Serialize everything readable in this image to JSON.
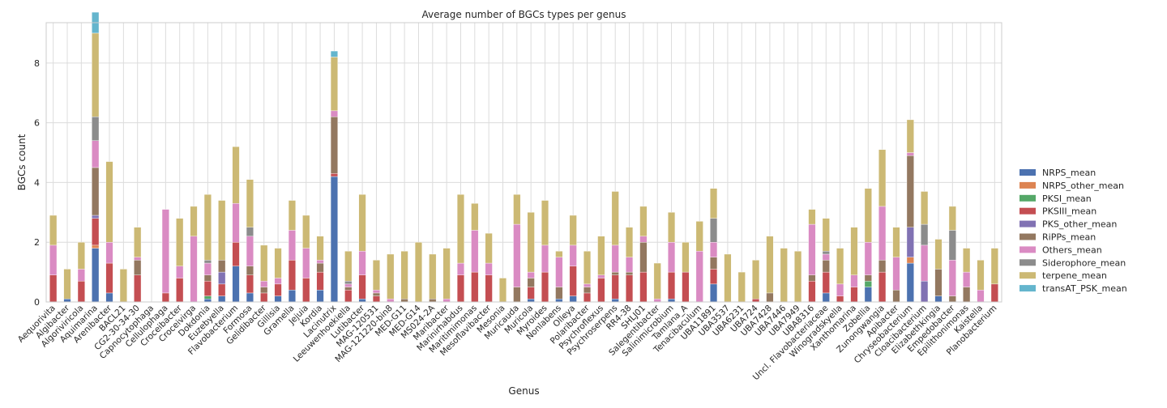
{
  "chart_data": {
    "type": "bar",
    "stacked": true,
    "title": "Average number of BGCs types per genus",
    "xlabel": "Genus",
    "ylabel": "BGCs count",
    "ylim": [
      0,
      9.35
    ],
    "yticks": [
      0,
      2,
      4,
      6,
      8
    ],
    "grid": true,
    "legend_position": "right",
    "categories": [
      "Aequorivita",
      "Algibacter",
      "Algoriviricola",
      "Aquimarina",
      "Arenibacter",
      "BACL21",
      "CG2-30-34-30",
      "Capnocytophaga",
      "Cellulophaga",
      "Croceibacter",
      "Croceivirga",
      "Dokdonia",
      "Euzebyella",
      "Flavobacterium",
      "Formosa",
      "Gelidibacter",
      "Gillisia",
      "Gramella",
      "Jejuia",
      "Kordia",
      "Lacinutrix",
      "Leeuwenhoekiella",
      "Lutibacter",
      "MAG-120531",
      "MAG-121220-bin8",
      "MED-G11",
      "MED-G14",
      "MS024-2A",
      "Maribacter",
      "Marinirhabdus",
      "Maritimimonas",
      "Mesoflavibacter",
      "Mesonia",
      "Muricauda",
      "Muricola",
      "Myroides",
      "Nonlabens",
      "Olleya",
      "Polaribacter",
      "Psychroflexus",
      "Psychroserpens",
      "RR4-38",
      "SHLJ01",
      "Salegentibacter",
      "Salinimicrobium",
      "Tamlana_A",
      "Tenacibaculum",
      "UBA11891",
      "UBA3537",
      "UBA6231",
      "UBA724",
      "UBA7428",
      "UBA7446",
      "UBA7949",
      "UBA8316",
      "Uncl. Flavobacteriaceae",
      "Winogradskyella",
      "Xanthomarina",
      "Zobellia",
      "Zunongwangia",
      "Apibacter",
      "Chryseobacterium",
      "Cloacibacterium",
      "Elizabethkingia",
      "Empedobacter",
      "Epilithonimonas",
      "Kaistella",
      "Planobacterium"
    ],
    "series": [
      {
        "name": "NRPS_mean",
        "color": "#4c72b0",
        "values": [
          0,
          0.1,
          0,
          1.8,
          0.3,
          0,
          0,
          0,
          0,
          0,
          0,
          0.1,
          0.2,
          1.2,
          0.3,
          0,
          0.2,
          0.4,
          0,
          0.4,
          4.2,
          0,
          0.1,
          0,
          0,
          0,
          0,
          0,
          0,
          0,
          0,
          0,
          0,
          0,
          0.1,
          0,
          0.1,
          0.2,
          0,
          0,
          0.1,
          0,
          0,
          0,
          0.1,
          0,
          0,
          0.6,
          0,
          0,
          0,
          0,
          0,
          0,
          0,
          0.3,
          0,
          0,
          0.5,
          0,
          0,
          1.3,
          0,
          0.2,
          0,
          0,
          0,
          0
        ]
      },
      {
        "name": "NRPS_other_mean",
        "color": "#dd8452",
        "values": [
          0,
          0,
          0,
          0.1,
          0,
          0,
          0,
          0,
          0,
          0,
          0,
          0,
          0,
          0,
          0,
          0,
          0,
          0,
          0,
          0,
          0,
          0,
          0,
          0,
          0,
          0,
          0,
          0,
          0,
          0,
          0,
          0,
          0,
          0,
          0,
          0,
          0,
          0,
          0,
          0,
          0,
          0,
          0,
          0,
          0,
          0,
          0,
          0,
          0,
          0,
          0,
          0,
          0,
          0,
          0,
          0,
          0,
          0,
          0,
          0,
          0,
          0.2,
          0,
          0,
          0,
          0,
          0,
          0
        ]
      },
      {
        "name": "PKSI_mean",
        "color": "#55a868",
        "values": [
          0,
          0,
          0,
          0,
          0,
          0,
          0,
          0,
          0,
          0,
          0,
          0.1,
          0,
          0,
          0,
          0,
          0,
          0,
          0,
          0,
          0,
          0,
          0,
          0,
          0,
          0,
          0,
          0,
          0,
          0,
          0,
          0,
          0,
          0,
          0,
          0,
          0,
          0,
          0,
          0,
          0,
          0,
          0,
          0,
          0,
          0,
          0,
          0,
          0,
          0,
          0,
          0,
          0,
          0,
          0,
          0,
          0,
          0,
          0.2,
          0,
          0,
          0,
          0,
          0,
          0,
          0,
          0,
          0
        ]
      },
      {
        "name": "PKSIII_mean",
        "color": "#c44e52",
        "values": [
          0.9,
          0,
          0.7,
          0.9,
          1.0,
          0,
          0.9,
          0,
          0.3,
          0.8,
          0,
          0.5,
          0.4,
          0.8,
          0.6,
          0.3,
          0.4,
          1.0,
          0.8,
          0.6,
          0.1,
          0.4,
          0.8,
          0.2,
          0,
          0,
          0,
          0,
          0,
          0.9,
          1.0,
          0.9,
          0,
          0,
          0.4,
          1.0,
          0,
          1.0,
          0.3,
          0.8,
          0.8,
          0.9,
          1.0,
          0,
          0.9,
          1.0,
          0,
          0.5,
          0,
          0,
          0.1,
          0,
          0,
          0,
          0.7,
          0.7,
          0.2,
          0.5,
          0,
          1.0,
          0,
          0,
          0,
          0,
          0,
          0,
          0,
          0.6
        ]
      },
      {
        "name": "PKS_other_mean",
        "color": "#8172b3",
        "values": [
          0,
          0,
          0,
          0.1,
          0,
          0,
          0,
          0,
          0,
          0,
          0,
          0,
          0.4,
          0,
          0,
          0,
          0,
          0,
          0,
          0,
          0,
          0,
          0,
          0,
          0,
          0,
          0,
          0,
          0,
          0,
          0,
          0,
          0,
          0,
          0,
          0,
          0,
          0,
          0,
          0,
          0,
          0,
          0,
          0,
          0,
          0,
          0,
          0,
          0,
          0,
          0,
          0,
          0,
          0,
          0,
          0,
          0,
          0,
          0,
          0,
          0,
          1.0,
          0.7,
          0,
          0,
          0,
          0,
          0
        ]
      },
      {
        "name": "RiPPs_mean",
        "color": "#937860",
        "values": [
          0,
          0,
          0,
          1.6,
          0,
          0,
          0.5,
          0,
          0,
          0,
          0,
          0.2,
          0.4,
          0,
          0.3,
          0.2,
          0,
          0,
          0,
          0.3,
          1.9,
          0.1,
          0,
          0.1,
          0,
          0.1,
          0,
          0.1,
          0,
          0,
          0,
          0,
          0,
          0.5,
          0.3,
          0,
          0.4,
          0,
          0.2,
          0,
          0.1,
          0.1,
          1.0,
          0,
          0,
          0,
          0,
          0.4,
          0,
          0,
          0,
          0.3,
          0,
          0,
          0.2,
          0.4,
          0,
          0,
          0.2,
          0.4,
          0.4,
          2.4,
          0,
          0.9,
          0.2,
          0.5,
          0,
          0
        ]
      },
      {
        "name": "Others_mean",
        "color": "#da8bc3",
        "values": [
          1.0,
          0,
          0.4,
          0.9,
          0.7,
          0,
          0.1,
          0,
          2.8,
          0.4,
          2.2,
          0.4,
          0,
          1.3,
          1.0,
          0.2,
          0.2,
          1.0,
          1.0,
          0.1,
          0.2,
          0.1,
          0.8,
          0.1,
          0.1,
          0,
          0,
          0,
          0.1,
          0.4,
          1.4,
          0.4,
          0,
          2.1,
          0.2,
          0.9,
          1.0,
          0.7,
          0.1,
          0.1,
          0.9,
          0.5,
          0.2,
          0.1,
          1.0,
          0,
          1.7,
          0.5,
          0,
          0,
          0,
          0,
          0,
          0,
          1.7,
          0.2,
          0.4,
          0.4,
          1.1,
          1.8,
          1.1,
          0.1,
          1.2,
          0,
          1.2,
          0.5,
          0.4,
          0
        ]
      },
      {
        "name": "Siderophore_mean",
        "color": "#8c8c8c",
        "values": [
          0,
          0,
          0,
          0.8,
          0,
          0,
          0,
          0,
          0,
          0,
          0,
          0.1,
          0,
          0,
          0.3,
          0,
          0,
          0,
          0,
          0,
          0,
          0.1,
          0,
          0,
          0,
          0,
          0,
          0,
          0,
          0,
          0,
          0,
          0,
          0,
          0,
          0,
          0,
          0,
          0,
          0,
          0,
          0,
          0,
          0,
          0,
          0,
          0,
          0.8,
          0,
          0,
          0,
          0,
          0,
          0,
          0,
          0.1,
          0,
          0,
          0,
          0,
          0,
          0,
          0.7,
          0,
          1.0,
          0,
          0,
          0
        ]
      },
      {
        "name": "terpene_mean",
        "color": "#ccb974",
        "values": [
          1.0,
          1.0,
          0.9,
          2.8,
          2.7,
          1.1,
          1.0,
          0,
          0,
          1.6,
          1.0,
          2.2,
          2.0,
          1.9,
          1.6,
          1.2,
          1.0,
          1.0,
          1.1,
          0.8,
          1.8,
          1.0,
          1.9,
          1.0,
          1.5,
          1.6,
          2.0,
          1.5,
          1.7,
          2.3,
          0.9,
          1.0,
          0.8,
          1.0,
          2.0,
          1.5,
          0.2,
          1.0,
          1.1,
          1.3,
          1.8,
          1.0,
          1.0,
          1.2,
          1.0,
          1.0,
          1.0,
          1.0,
          1.6,
          1.0,
          1.3,
          1.9,
          1.8,
          1.7,
          0.5,
          1.1,
          1.2,
          1.6,
          1.8,
          1.9,
          1.0,
          1.1,
          1.1,
          1.0,
          0.8,
          0.8,
          1.0,
          1.2
        ]
      },
      {
        "name": "transAT_PSK_mean",
        "color": "#64b5cd",
        "values": [
          0,
          0,
          0,
          0.7,
          0,
          0,
          0,
          0,
          0,
          0,
          0,
          0,
          0,
          0,
          0,
          0,
          0,
          0,
          0,
          0,
          0.2,
          0,
          0,
          0,
          0,
          0,
          0,
          0,
          0,
          0,
          0,
          0,
          0,
          0,
          0,
          0,
          0,
          0,
          0,
          0,
          0,
          0,
          0,
          0,
          0,
          0,
          0,
          0,
          0,
          0,
          0,
          0,
          0,
          0,
          0,
          0,
          0,
          0,
          0,
          0,
          0,
          0,
          0,
          0,
          0,
          0,
          0,
          0
        ]
      }
    ]
  }
}
